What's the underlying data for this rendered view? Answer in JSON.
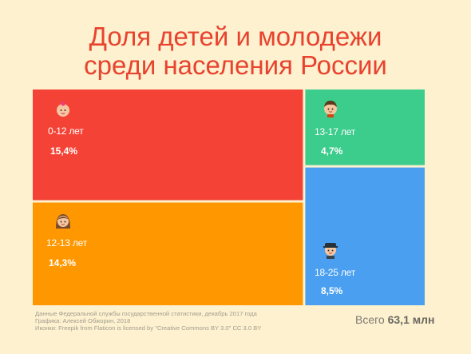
{
  "title_line1": "Доля детей и молодежи",
  "title_line2": "среди населения России",
  "chart_data": {
    "type": "treemap",
    "title": "Доля детей и молодежи среди населения России",
    "items": [
      {
        "label": "0-12 лет",
        "value_label": "15,4%",
        "value": 15.4,
        "color": "#f44336",
        "icon": "baby-girl-icon"
      },
      {
        "label": "12-13 лет",
        "value_label": "14,3%",
        "value": 14.3,
        "color": "#ff9800",
        "icon": "girl-icon"
      },
      {
        "label": "13-17 лет",
        "value_label": "4,7%",
        "value": 4.7,
        "color": "#3ccc8c",
        "icon": "boy-icon"
      },
      {
        "label": "18-25 лет",
        "value_label": "8,5%",
        "value": 8.5,
        "color": "#4a9ff0",
        "icon": "young-man-cap-icon"
      }
    ]
  },
  "footer": {
    "source": "Данные Федеральной службы государственной статистики, декабрь 2017 года",
    "graphics": "Графика: Алексей Обжорин, 2018",
    "icons": "Иконки: Freepik  from Flaticon  is licensed by \"Creative Commons BY 3.0\" CC 3.0 BY",
    "total_prefix": "Всего",
    "total_value": "63,1 млн"
  }
}
